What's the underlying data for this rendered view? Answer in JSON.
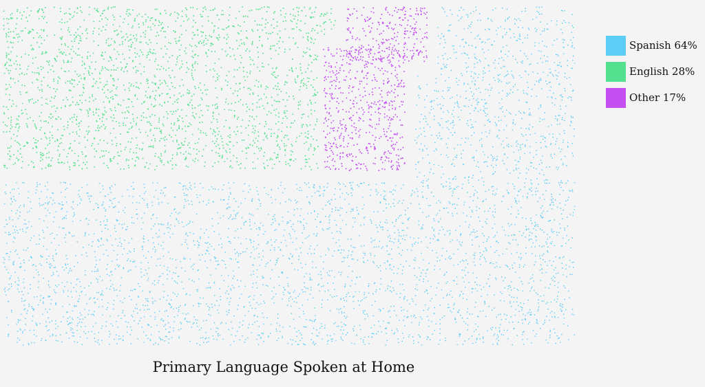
{
  "chart_data": {
    "type": "dot-density",
    "title": "Primary Language Spoken at Home",
    "series": [
      {
        "name": "Spanish",
        "label": "Spanish 64%",
        "value": 64,
        "color": "#5ecdf5"
      },
      {
        "name": "English",
        "label": "English 28%",
        "value": 28,
        "color": "#55e08f"
      },
      {
        "name": "Other",
        "label": "Other 17%",
        "value": 17,
        "color": "#c44ef2"
      }
    ],
    "legend_position": "top-right",
    "grid": false
  }
}
